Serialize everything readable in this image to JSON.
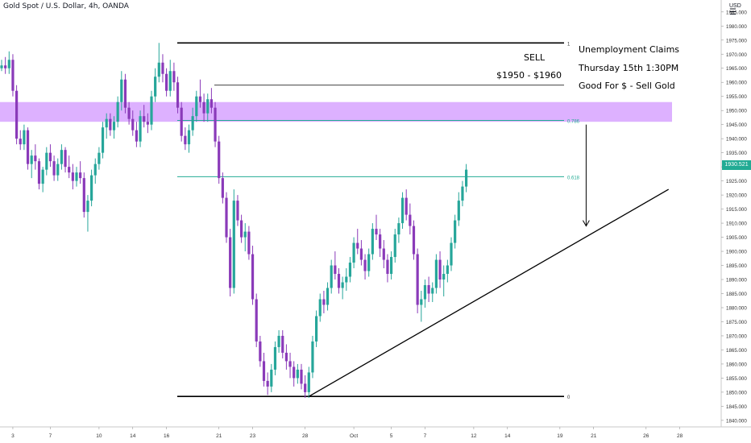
{
  "header": {
    "symbol_line": "Gold Spot / U.S. Dollar, 4h, OANDA"
  },
  "axis": {
    "currency": "USD"
  },
  "last_price": {
    "label": "1930.521",
    "value": 1930.521,
    "color": "#22ab94"
  },
  "annotations": {
    "sell": "SELL",
    "range": "$1950 - $1960",
    "event": "Unemployment Claims",
    "when": "Thursday 15th 1:30PM",
    "impact": "Good For $ - Sell Gold"
  },
  "colors": {
    "up": "#26a69a",
    "down": "#8a3ab9",
    "zone": "#d9a9ff",
    "fib": "#22ab94",
    "line": "#000000"
  },
  "chart_data": {
    "type": "candlestick",
    "ylim": [
      1835,
      1990
    ],
    "yticks": [
      "1840.000",
      "1845.000",
      "1850.000",
      "1855.000",
      "1860.000",
      "1865.000",
      "1870.000",
      "1875.000",
      "1880.000",
      "1885.000",
      "1890.000",
      "1895.000",
      "1900.000",
      "1905.000",
      "1910.000",
      "1915.000",
      "1920.000",
      "1925.000",
      "1930.000",
      "1935.000",
      "1940.000",
      "1945.000",
      "1950.000",
      "1955.000",
      "1960.000",
      "1965.000",
      "1970.000",
      "1975.000",
      "1980.000",
      "1985.000"
    ],
    "xticks": [
      "3",
      "7",
      "10",
      "14",
      "16",
      "21",
      "23",
      "28",
      "Oct",
      "5",
      "7",
      "12",
      "14",
      "19",
      "21",
      "26",
      "28"
    ],
    "xtick_bars": [
      3,
      13,
      26,
      35,
      44,
      58,
      67,
      81,
      94,
      104,
      113,
      126,
      135,
      149,
      158,
      172,
      181
    ],
    "fib_levels": [
      {
        "label": "1",
        "price": 1974
      },
      {
        "label": "0.786",
        "price": 1946.5
      },
      {
        "label": "0.618",
        "price": 1926.5
      },
      {
        "label": "0",
        "price": 1848.5
      }
    ],
    "top_line": {
      "price": 1959,
      "start_bar": 51,
      "end_bar": 150
    },
    "sell_zone": {
      "price_low": 1946,
      "price_high": 1953
    },
    "trendline": {
      "start_bar": 82,
      "start_price": 1848.5,
      "end_bar": 178,
      "end_price": 1922
    },
    "arrow": {
      "bar": 156,
      "from_price": 1945,
      "to_price": 1909
    },
    "candles": [
      [
        1965,
        1968,
        1964,
        1966
      ],
      [
        1966,
        1969,
        1963,
        1965
      ],
      [
        1965,
        1971,
        1963,
        1968
      ],
      [
        1968,
        1970,
        1955,
        1957
      ],
      [
        1957,
        1959,
        1938,
        1940
      ],
      [
        1940,
        1943,
        1936,
        1938
      ],
      [
        1938,
        1945,
        1936,
        1943
      ],
      [
        1943,
        1944,
        1929,
        1931
      ],
      [
        1931,
        1936,
        1926,
        1934
      ],
      [
        1934,
        1938,
        1929,
        1932
      ],
      [
        1932,
        1933,
        1922,
        1924
      ],
      [
        1924,
        1930,
        1921,
        1929
      ],
      [
        1929,
        1937,
        1927,
        1935
      ],
      [
        1935,
        1938,
        1930,
        1932
      ],
      [
        1932,
        1934,
        1925,
        1927
      ],
      [
        1927,
        1933,
        1925,
        1931
      ],
      [
        1931,
        1938,
        1929,
        1936
      ],
      [
        1936,
        1937,
        1928,
        1930
      ],
      [
        1930,
        1934,
        1926,
        1928
      ],
      [
        1928,
        1931,
        1922,
        1925
      ],
      [
        1925,
        1930,
        1923,
        1928
      ],
      [
        1928,
        1932,
        1924,
        1926
      ],
      [
        1926,
        1928,
        1912,
        1914
      ],
      [
        1914,
        1920,
        1907,
        1918
      ],
      [
        1918,
        1929,
        1916,
        1927
      ],
      [
        1927,
        1933,
        1924,
        1931
      ],
      [
        1931,
        1937,
        1929,
        1935
      ],
      [
        1935,
        1946,
        1933,
        1944
      ],
      [
        1944,
        1949,
        1940,
        1947
      ],
      [
        1947,
        1949,
        1941,
        1943
      ],
      [
        1943,
        1948,
        1940,
        1946
      ],
      [
        1946,
        1955,
        1944,
        1953
      ],
      [
        1953,
        1964,
        1950,
        1961
      ],
      [
        1961,
        1963,
        1949,
        1951
      ],
      [
        1951,
        1953,
        1945,
        1947
      ],
      [
        1947,
        1950,
        1941,
        1943
      ],
      [
        1943,
        1946,
        1937,
        1939
      ],
      [
        1939,
        1950,
        1937,
        1948
      ],
      [
        1948,
        1952,
        1944,
        1946
      ],
      [
        1946,
        1949,
        1942,
        1945
      ],
      [
        1945,
        1957,
        1943,
        1955
      ],
      [
        1955,
        1965,
        1953,
        1962
      ],
      [
        1962,
        1974,
        1960,
        1967
      ],
      [
        1967,
        1970,
        1960,
        1963
      ],
      [
        1963,
        1965,
        1955,
        1957
      ],
      [
        1957,
        1968,
        1955,
        1964
      ],
      [
        1964,
        1967,
        1957,
        1960
      ],
      [
        1960,
        1962,
        1949,
        1951
      ],
      [
        1951,
        1953,
        1939,
        1941
      ],
      [
        1941,
        1944,
        1936,
        1938
      ],
      [
        1938,
        1945,
        1935,
        1943
      ],
      [
        1943,
        1951,
        1941,
        1948
      ],
      [
        1948,
        1957,
        1946,
        1955
      ],
      [
        1955,
        1961,
        1951,
        1953
      ],
      [
        1953,
        1956,
        1946,
        1949
      ],
      [
        1949,
        1956,
        1946,
        1954
      ],
      [
        1954,
        1958,
        1949,
        1951
      ],
      [
        1951,
        1953,
        1937,
        1939
      ],
      [
        1939,
        1941,
        1924,
        1926
      ],
      [
        1926,
        1928,
        1917,
        1919
      ],
      [
        1919,
        1921,
        1903,
        1905
      ],
      [
        1905,
        1908,
        1884,
        1887
      ],
      [
        1887,
        1922,
        1885,
        1918
      ],
      [
        1918,
        1920,
        1909,
        1911
      ],
      [
        1911,
        1913,
        1903,
        1905
      ],
      [
        1905,
        1910,
        1900,
        1907
      ],
      [
        1907,
        1909,
        1897,
        1899
      ],
      [
        1899,
        1902,
        1881,
        1883
      ],
      [
        1883,
        1885,
        1866,
        1868
      ],
      [
        1868,
        1870,
        1859,
        1861
      ],
      [
        1861,
        1864,
        1852,
        1854
      ],
      [
        1854,
        1857,
        1849,
        1852
      ],
      [
        1852,
        1860,
        1850,
        1858
      ],
      [
        1858,
        1868,
        1856,
        1866
      ],
      [
        1866,
        1872,
        1864,
        1870
      ],
      [
        1870,
        1872,
        1862,
        1864
      ],
      [
        1864,
        1867,
        1858,
        1861
      ],
      [
        1861,
        1864,
        1855,
        1859
      ],
      [
        1859,
        1861,
        1852,
        1855
      ],
      [
        1855,
        1860,
        1853,
        1858
      ],
      [
        1858,
        1860,
        1851,
        1853
      ],
      [
        1853,
        1856,
        1848,
        1850
      ],
      [
        1850,
        1859,
        1848,
        1857
      ],
      [
        1857,
        1870,
        1855,
        1868
      ],
      [
        1868,
        1879,
        1866,
        1877
      ],
      [
        1877,
        1885,
        1875,
        1883
      ],
      [
        1883,
        1886,
        1878,
        1881
      ],
      [
        1881,
        1889,
        1879,
        1887
      ],
      [
        1887,
        1897,
        1885,
        1895
      ],
      [
        1895,
        1900,
        1890,
        1892
      ],
      [
        1892,
        1894,
        1885,
        1887
      ],
      [
        1887,
        1891,
        1883,
        1889
      ],
      [
        1889,
        1894,
        1886,
        1891
      ],
      [
        1891,
        1898,
        1889,
        1896
      ],
      [
        1896,
        1905,
        1894,
        1903
      ],
      [
        1903,
        1908,
        1899,
        1901
      ],
      [
        1901,
        1904,
        1895,
        1897
      ],
      [
        1897,
        1899,
        1890,
        1893
      ],
      [
        1893,
        1901,
        1891,
        1899
      ],
      [
        1899,
        1910,
        1897,
        1908
      ],
      [
        1908,
        1913,
        1904,
        1906
      ],
      [
        1906,
        1908,
        1898,
        1901
      ],
      [
        1901,
        1904,
        1894,
        1897
      ],
      [
        1897,
        1899,
        1889,
        1892
      ],
      [
        1892,
        1900,
        1890,
        1898
      ],
      [
        1898,
        1908,
        1896,
        1906
      ],
      [
        1906,
        1912,
        1903,
        1910
      ],
      [
        1910,
        1921,
        1908,
        1919
      ],
      [
        1919,
        1922,
        1911,
        1913
      ],
      [
        1913,
        1917,
        1906,
        1909
      ],
      [
        1909,
        1911,
        1897,
        1899
      ],
      [
        1899,
        1901,
        1878,
        1881
      ],
      [
        1881,
        1886,
        1875,
        1883
      ],
      [
        1883,
        1890,
        1880,
        1888
      ],
      [
        1888,
        1891,
        1882,
        1885
      ],
      [
        1885,
        1889,
        1882,
        1887
      ],
      [
        1887,
        1899,
        1885,
        1897
      ],
      [
        1897,
        1900,
        1887,
        1890
      ],
      [
        1890,
        1895,
        1884,
        1892
      ],
      [
        1892,
        1897,
        1889,
        1895
      ],
      [
        1895,
        1905,
        1893,
        1903
      ],
      [
        1903,
        1913,
        1901,
        1911
      ],
      [
        1911,
        1921,
        1909,
        1918
      ],
      [
        1918,
        1925,
        1916,
        1923
      ],
      [
        1923,
        1931,
        1921,
        1929
      ]
    ]
  }
}
